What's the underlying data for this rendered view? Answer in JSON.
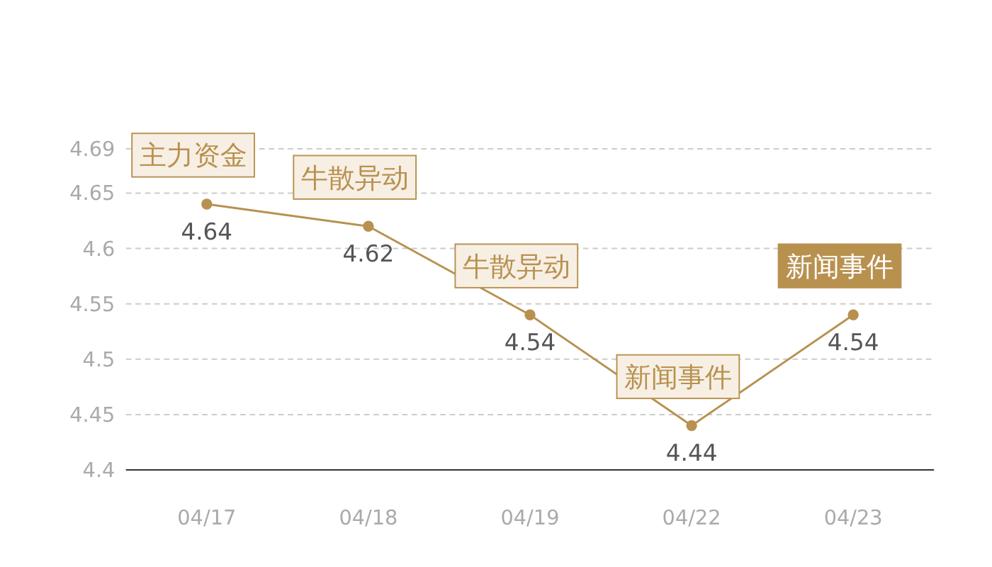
{
  "chart_data": {
    "type": "line",
    "categories": [
      "04/17",
      "04/18",
      "04/19",
      "04/22",
      "04/23"
    ],
    "series": [
      {
        "color": "#b8914f",
        "values": [
          4.64,
          4.62,
          4.54,
          4.44,
          4.54
        ]
      }
    ],
    "ylim": [
      4.4,
      4.69
    ],
    "yticks": [
      4.4,
      4.45,
      4.5,
      4.55,
      4.6,
      4.65,
      4.69
    ],
    "grid": "y",
    "marker": "circle",
    "data_labels": true,
    "annotations": [
      {
        "text": "主力资金",
        "x": "04/17",
        "y": 4.64
      },
      {
        "text": "牛散异动",
        "x": "04/18",
        "y": 4.62
      },
      {
        "text": "牛散异动",
        "x": "04/19",
        "y": 4.54
      },
      {
        "text": "新闻事件",
        "x": "04/22",
        "y": 4.44
      },
      {
        "text": "新闻事件",
        "x": "04/23",
        "y": 4.54
      }
    ]
  }
}
